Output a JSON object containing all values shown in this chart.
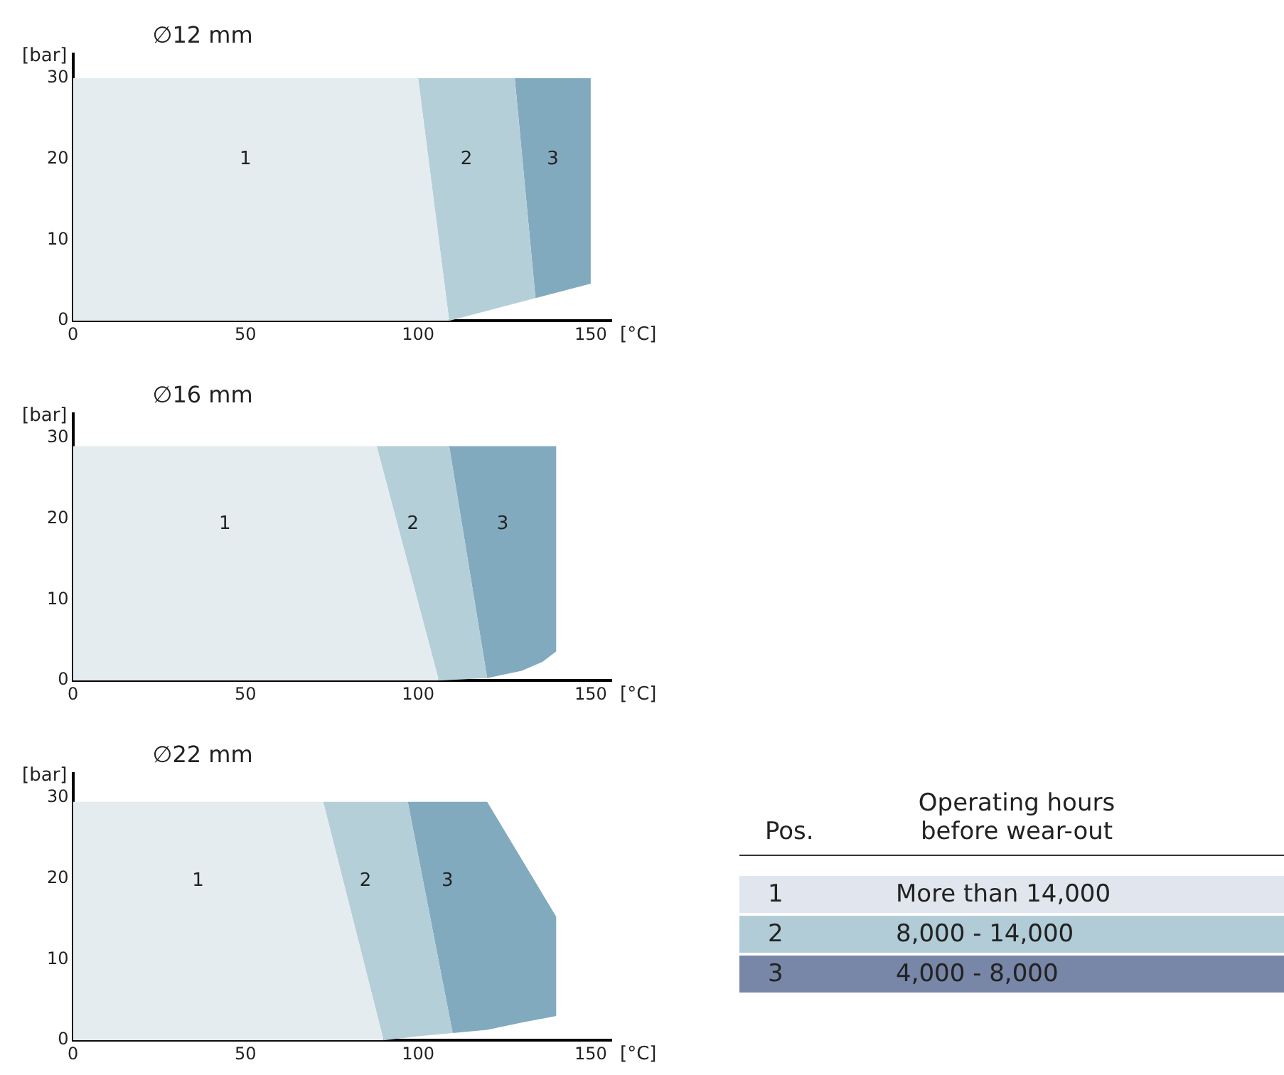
{
  "chart_data": [
    {
      "type": "area",
      "title": "∅12 mm",
      "xlabel": "[°C]",
      "ylabel": "[bar]",
      "xlim": [
        0,
        156
      ],
      "ylim": [
        0,
        33
      ],
      "xticks": [
        0,
        50,
        100,
        150
      ],
      "yticks": [
        0,
        10,
        20,
        30
      ],
      "grid": false,
      "series": [
        {
          "name": "1",
          "color": "#e4ecef",
          "x": [
            0,
            0,
            100,
            109,
            0
          ],
          "values": [
            0,
            30,
            30,
            0,
            0
          ]
        },
        {
          "name": "2",
          "color": "#b5cfd9",
          "x": [
            100,
            128,
            134,
            109,
            100
          ],
          "values": [
            30,
            30,
            2.8,
            0,
            30
          ]
        },
        {
          "name": "3",
          "color": "#82aabf",
          "x": [
            128,
            150,
            150,
            134,
            128
          ],
          "values": [
            30,
            30,
            4.6,
            2.8,
            30
          ]
        }
      ]
    },
    {
      "type": "area",
      "title": "∅16 mm",
      "xlabel": "[°C]",
      "ylabel": "[bar]",
      "xlim": [
        0,
        156
      ],
      "ylim": [
        0,
        33
      ],
      "xticks": [
        0,
        50,
        100,
        150
      ],
      "yticks": [
        0,
        10,
        20,
        30
      ],
      "grid": false,
      "series": [
        {
          "name": "1",
          "color": "#e4ecef",
          "x": [
            0,
            0,
            88,
            106,
            0
          ],
          "values": [
            0,
            29,
            29,
            0,
            0
          ]
        },
        {
          "name": "2",
          "color": "#b5cfd9",
          "x": [
            88,
            109,
            120,
            106,
            88
          ],
          "values": [
            29,
            29,
            0.3,
            0,
            29
          ]
        },
        {
          "name": "3",
          "color": "#82aabf",
          "x": [
            109,
            140,
            140,
            136,
            130,
            120,
            109
          ],
          "values": [
            29,
            29,
            3.6,
            2.3,
            1.2,
            0.3,
            29
          ]
        }
      ]
    },
    {
      "type": "area",
      "title": "∅22 mm",
      "xlabel": "[°C]",
      "ylabel": "[bar]",
      "xlim": [
        0,
        156
      ],
      "ylim": [
        0,
        33
      ],
      "xticks": [
        0,
        50,
        100,
        150
      ],
      "yticks": [
        0,
        10,
        20,
        30
      ],
      "grid": false,
      "series": [
        {
          "name": "1",
          "color": "#e4ecef",
          "x": [
            0,
            0,
            72.5,
            90,
            0
          ],
          "values": [
            0,
            29.5,
            29.5,
            0,
            0
          ]
        },
        {
          "name": "2",
          "color": "#b5cfd9",
          "x": [
            72.5,
            97,
            110,
            100,
            90,
            72.5
          ],
          "values": [
            29.5,
            29.5,
            0.9,
            0.5,
            0,
            29.5
          ]
        },
        {
          "name": "3",
          "color": "#82aabf",
          "x": [
            97,
            120,
            140,
            140,
            130,
            120,
            110,
            97
          ],
          "values": [
            29.5,
            29.5,
            15.3,
            3,
            2.2,
            1.3,
            0.9,
            29.5
          ]
        }
      ]
    },
    {
      "type": "other",
      "categories": [
        "1",
        "2",
        "3"
      ],
      "colors": [
        "#e1e5ee",
        "#b1ccd6",
        "#7886a8"
      ],
      "annotations": [
        "Pos.",
        "Operating hours before wear-out",
        "More than 14,000",
        "8,000 - 14,000",
        "4,000 - 8,000"
      ]
    }
  ]
}
